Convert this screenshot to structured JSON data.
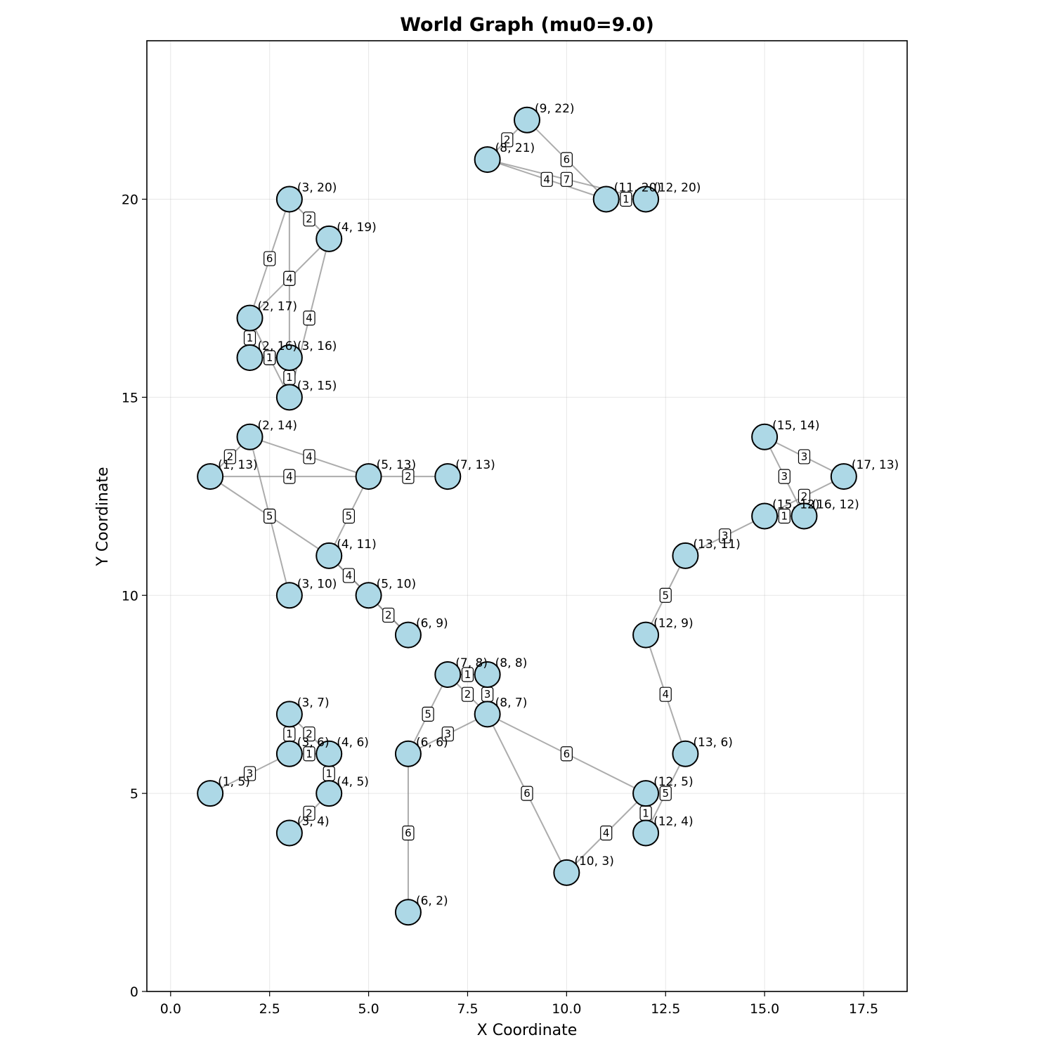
{
  "chart_data": {
    "type": "network-graph",
    "title": "World Graph (mu0=9.0)",
    "xlabel": "X Coordinate",
    "ylabel": "Y Coordinate",
    "xlim": [
      -0.6,
      18.6
    ],
    "ylim": [
      0,
      24
    ],
    "x_ticks": [
      0.0,
      2.5,
      5.0,
      7.5,
      10.0,
      12.5,
      15.0,
      17.5
    ],
    "x_tick_labels": [
      "0.0",
      "2.5",
      "5.0",
      "7.5",
      "10.0",
      "12.5",
      "15.0",
      "17.5"
    ],
    "y_ticks": [
      0,
      5,
      10,
      15,
      20
    ],
    "y_tick_labels": [
      "0",
      "5",
      "10",
      "15",
      "20"
    ],
    "grid": true,
    "node_color": "#add8e6",
    "edge_color": "#808080",
    "nodes": [
      {
        "x": 9,
        "y": 22,
        "label": "(9, 22)"
      },
      {
        "x": 8,
        "y": 21,
        "label": "(8, 21)"
      },
      {
        "x": 11,
        "y": 20,
        "label": "(11, 20)"
      },
      {
        "x": 12,
        "y": 20,
        "label": "(12, 20)"
      },
      {
        "x": 3,
        "y": 20,
        "label": "(3, 20)"
      },
      {
        "x": 4,
        "y": 19,
        "label": "(4, 19)"
      },
      {
        "x": 2,
        "y": 17,
        "label": "(2, 17)"
      },
      {
        "x": 2,
        "y": 16,
        "label": "(2, 16)"
      },
      {
        "x": 3,
        "y": 16,
        "label": "(3, 16)"
      },
      {
        "x": 3,
        "y": 15,
        "label": "(3, 15)"
      },
      {
        "x": 2,
        "y": 14,
        "label": "(2, 14)"
      },
      {
        "x": 1,
        "y": 13,
        "label": "(1, 13)"
      },
      {
        "x": 5,
        "y": 13,
        "label": "(5, 13)"
      },
      {
        "x": 7,
        "y": 13,
        "label": "(7, 13)"
      },
      {
        "x": 4,
        "y": 11,
        "label": "(4, 11)"
      },
      {
        "x": 3,
        "y": 10,
        "label": "(3, 10)"
      },
      {
        "x": 5,
        "y": 10,
        "label": "(5, 10)"
      },
      {
        "x": 6,
        "y": 9,
        "label": "(6, 9)"
      },
      {
        "x": 15,
        "y": 14,
        "label": "(15, 14)"
      },
      {
        "x": 17,
        "y": 13,
        "label": "(17, 13)"
      },
      {
        "x": 15,
        "y": 12,
        "label": "(15, 12)"
      },
      {
        "x": 16,
        "y": 12,
        "label": "(16, 12)"
      },
      {
        "x": 13,
        "y": 11,
        "label": "(13, 11)"
      },
      {
        "x": 12,
        "y": 9,
        "label": "(12, 9)"
      },
      {
        "x": 7,
        "y": 8,
        "label": "(7, 8)"
      },
      {
        "x": 8,
        "y": 8,
        "label": "(8, 8)"
      },
      {
        "x": 8,
        "y": 7,
        "label": "(8, 7)"
      },
      {
        "x": 3,
        "y": 7,
        "label": "(3, 7)"
      },
      {
        "x": 3,
        "y": 6,
        "label": "(3, 6)"
      },
      {
        "x": 4,
        "y": 6,
        "label": "(4, 6)"
      },
      {
        "x": 6,
        "y": 6,
        "label": "(6, 6)"
      },
      {
        "x": 13,
        "y": 6,
        "label": "(13, 6)"
      },
      {
        "x": 1,
        "y": 5,
        "label": "(1, 5)"
      },
      {
        "x": 4,
        "y": 5,
        "label": "(4, 5)"
      },
      {
        "x": 12,
        "y": 5,
        "label": "(12, 5)"
      },
      {
        "x": 3,
        "y": 4,
        "label": "(3, 4)"
      },
      {
        "x": 12,
        "y": 4,
        "label": "(12, 4)"
      },
      {
        "x": 10,
        "y": 3,
        "label": "(10, 3)"
      },
      {
        "x": 6,
        "y": 2,
        "label": "(6, 2)"
      }
    ],
    "edges": [
      {
        "source": [
          8,
          21
        ],
        "target": [
          9,
          22
        ],
        "weight": "2"
      },
      {
        "source": [
          9,
          22
        ],
        "target": [
          11,
          20
        ],
        "weight": "6"
      },
      {
        "source": [
          8,
          21
        ],
        "target": [
          11,
          20
        ],
        "weight": "4"
      },
      {
        "source": [
          8,
          21
        ],
        "target": [
          12,
          20
        ],
        "weight": "7"
      },
      {
        "source": [
          11,
          20
        ],
        "target": [
          12,
          20
        ],
        "weight": "1"
      },
      {
        "source": [
          3,
          20
        ],
        "target": [
          4,
          19
        ],
        "weight": "2"
      },
      {
        "source": [
          3,
          20
        ],
        "target": [
          2,
          17
        ],
        "weight": "6"
      },
      {
        "source": [
          3,
          20
        ],
        "target": [
          3,
          16
        ],
        "weight": "4"
      },
      {
        "source": [
          4,
          19
        ],
        "target": [
          2,
          17
        ],
        "weight": "4"
      },
      {
        "source": [
          4,
          19
        ],
        "target": [
          3,
          15
        ],
        "weight": "4"
      },
      {
        "source": [
          2,
          17
        ],
        "target": [
          2,
          16
        ],
        "weight": "1"
      },
      {
        "source": [
          2,
          17
        ],
        "target": [
          3,
          15
        ],
        "weight": "4"
      },
      {
        "source": [
          2,
          16
        ],
        "target": [
          3,
          16
        ],
        "weight": "1"
      },
      {
        "source": [
          3,
          16
        ],
        "target": [
          3,
          15
        ],
        "weight": "1"
      },
      {
        "source": [
          1,
          13
        ],
        "target": [
          2,
          14
        ],
        "weight": "2"
      },
      {
        "source": [
          2,
          14
        ],
        "target": [
          5,
          13
        ],
        "weight": "4"
      },
      {
        "source": [
          1,
          13
        ],
        "target": [
          5,
          13
        ],
        "weight": "4"
      },
      {
        "source": [
          5,
          13
        ],
        "target": [
          7,
          13
        ],
        "weight": "2"
      },
      {
        "source": [
          1,
          13
        ],
        "target": [
          4,
          11
        ],
        "weight": "5"
      },
      {
        "source": [
          2,
          14
        ],
        "target": [
          3,
          10
        ],
        "weight": "5"
      },
      {
        "source": [
          5,
          13
        ],
        "target": [
          4,
          11
        ],
        "weight": "5"
      },
      {
        "source": [
          4,
          11
        ],
        "target": [
          5,
          10
        ],
        "weight": "4"
      },
      {
        "source": [
          4,
          11
        ],
        "target": [
          6,
          9
        ],
        "weight": "4"
      },
      {
        "source": [
          5,
          10
        ],
        "target": [
          6,
          9
        ],
        "weight": "2"
      },
      {
        "source": [
          15,
          14
        ],
        "target": [
          17,
          13
        ],
        "weight": "3"
      },
      {
        "source": [
          15,
          14
        ],
        "target": [
          16,
          12
        ],
        "weight": "3"
      },
      {
        "source": [
          17,
          13
        ],
        "target": [
          15,
          12
        ],
        "weight": "2"
      },
      {
        "source": [
          15,
          12
        ],
        "target": [
          16,
          12
        ],
        "weight": "1"
      },
      {
        "source": [
          13,
          11
        ],
        "target": [
          15,
          12
        ],
        "weight": "3"
      },
      {
        "source": [
          12,
          9
        ],
        "target": [
          13,
          11
        ],
        "weight": "5"
      },
      {
        "source": [
          12,
          9
        ],
        "target": [
          13,
          6
        ],
        "weight": "4"
      },
      {
        "source": [
          7,
          8
        ],
        "target": [
          8,
          8
        ],
        "weight": "1"
      },
      {
        "source": [
          7,
          8
        ],
        "target": [
          8,
          7
        ],
        "weight": "2"
      },
      {
        "source": [
          8,
          8
        ],
        "target": [
          8,
          7
        ],
        "weight": "3"
      },
      {
        "source": [
          7,
          8
        ],
        "target": [
          6,
          6
        ],
        "weight": "5"
      },
      {
        "source": [
          6,
          6
        ],
        "target": [
          8,
          7
        ],
        "weight": "3"
      },
      {
        "source": [
          8,
          7
        ],
        "target": [
          12,
          5
        ],
        "weight": "6"
      },
      {
        "source": [
          8,
          7
        ],
        "target": [
          10,
          3
        ],
        "weight": "6"
      },
      {
        "source": [
          6,
          6
        ],
        "target": [
          6,
          2
        ],
        "weight": "6"
      },
      {
        "source": [
          13,
          6
        ],
        "target": [
          12,
          4
        ],
        "weight": "5"
      },
      {
        "source": [
          12,
          5
        ],
        "target": [
          12,
          4
        ],
        "weight": "1"
      },
      {
        "source": [
          12,
          5
        ],
        "target": [
          10,
          3
        ],
        "weight": "4"
      },
      {
        "source": [
          3,
          7
        ],
        "target": [
          3,
          6
        ],
        "weight": "1"
      },
      {
        "source": [
          3,
          7
        ],
        "target": [
          4,
          6
        ],
        "weight": "2"
      },
      {
        "source": [
          3,
          6
        ],
        "target": [
          4,
          6
        ],
        "weight": "1"
      },
      {
        "source": [
          1,
          5
        ],
        "target": [
          3,
          6
        ],
        "weight": "3"
      },
      {
        "source": [
          4,
          6
        ],
        "target": [
          4,
          5
        ],
        "weight": "1"
      },
      {
        "source": [
          4,
          5
        ],
        "target": [
          3,
          4
        ],
        "weight": "2"
      }
    ]
  }
}
